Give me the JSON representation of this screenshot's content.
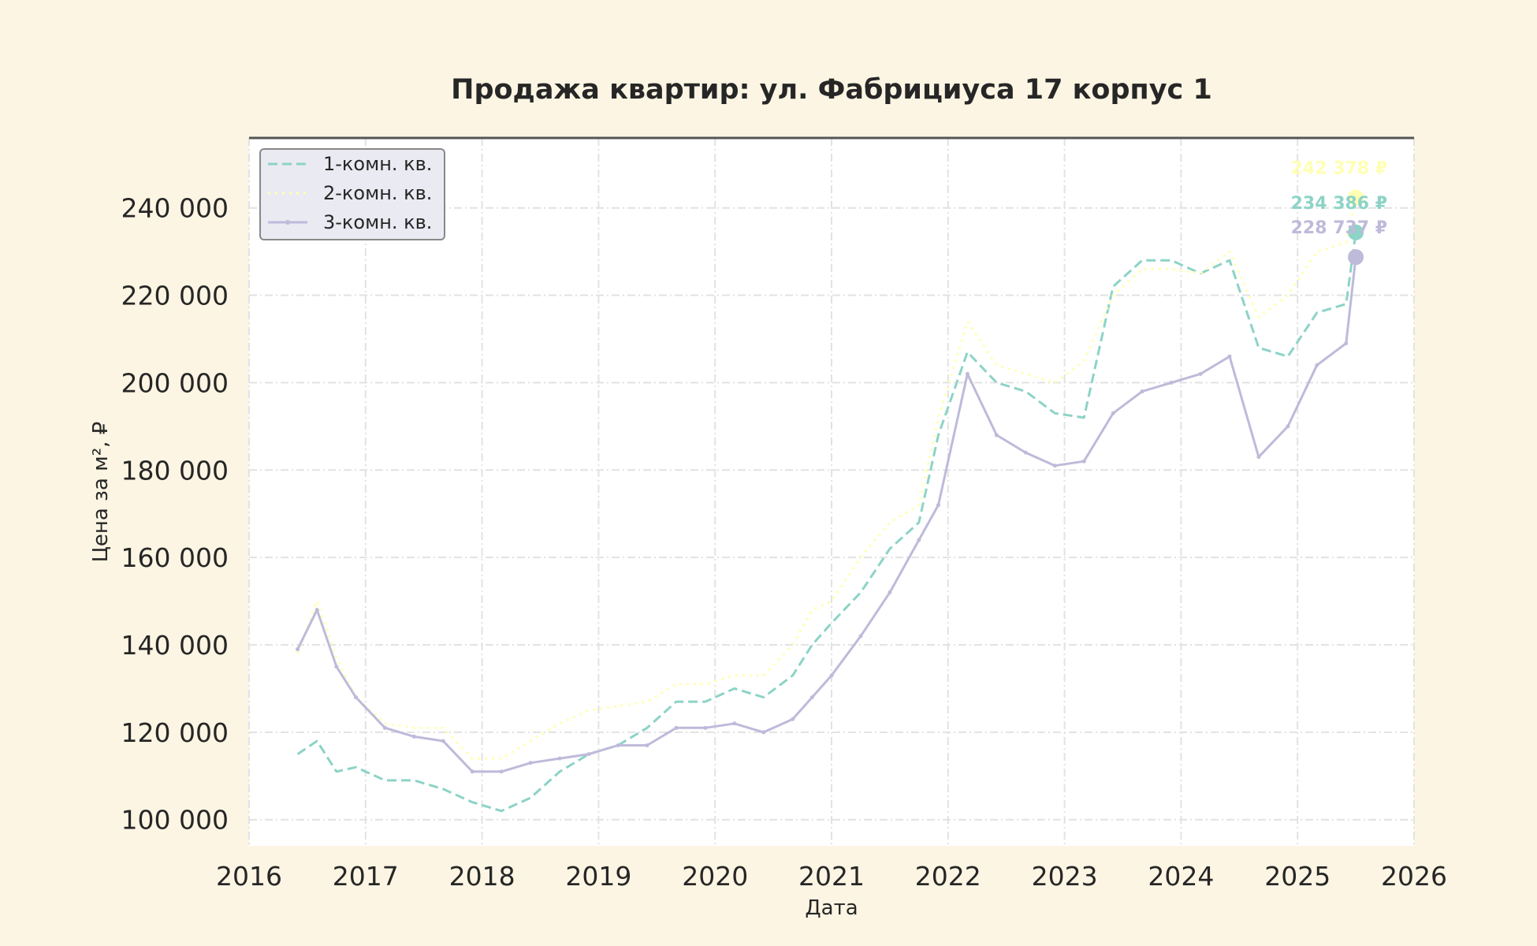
{
  "chart_data": {
    "type": "line",
    "title": "Продажа квартир: ул. Фабрициуса 17 корпус 1",
    "xlabel": "Дата",
    "ylabel": "Цена за м², ₽",
    "xlim": [
      "2016-01-01",
      "2026-01-01"
    ],
    "ylim": [
      94000,
      256000
    ],
    "x_ticks": [
      "2016",
      "2017",
      "2018",
      "2019",
      "2020",
      "2021",
      "2022",
      "2023",
      "2024",
      "2025",
      "2026"
    ],
    "y_ticks": [
      "100 000",
      "120 000",
      "140 000",
      "160 000",
      "180 000",
      "200 000",
      "220 000",
      "240 000"
    ],
    "y_tick_values": [
      100000,
      120000,
      140000,
      160000,
      180000,
      200000,
      220000,
      240000
    ],
    "grid": true,
    "legend_position": "top-left",
    "series": [
      {
        "name": "1-комн. кв.",
        "color": "#8dd3c7",
        "style": "dashed",
        "points": [
          [
            "2016-06",
            115000
          ],
          [
            "2016-08",
            118000
          ],
          [
            "2016-10",
            111000
          ],
          [
            "2016-12",
            112000
          ],
          [
            "2017-03",
            109000
          ],
          [
            "2017-06",
            109000
          ],
          [
            "2017-09",
            107000
          ],
          [
            "2017-12",
            104000
          ],
          [
            "2018-03",
            102000
          ],
          [
            "2018-06",
            105000
          ],
          [
            "2018-09",
            111000
          ],
          [
            "2018-12",
            115000
          ],
          [
            "2019-03",
            117000
          ],
          [
            "2019-06",
            121000
          ],
          [
            "2019-09",
            127000
          ],
          [
            "2019-12",
            127000
          ],
          [
            "2020-03",
            130000
          ],
          [
            "2020-06",
            128000
          ],
          [
            "2020-09",
            133000
          ],
          [
            "2020-11",
            140000
          ],
          [
            "2021-01",
            145000
          ],
          [
            "2021-04",
            152000
          ],
          [
            "2021-07",
            162000
          ],
          [
            "2021-10",
            168000
          ],
          [
            "2021-12",
            188000
          ],
          [
            "2022-03",
            207000
          ],
          [
            "2022-06",
            200000
          ],
          [
            "2022-09",
            198000
          ],
          [
            "2022-12",
            193000
          ],
          [
            "2023-03",
            192000
          ],
          [
            "2023-06",
            222000
          ],
          [
            "2023-09",
            228000
          ],
          [
            "2023-12",
            228000
          ],
          [
            "2024-03",
            225000
          ],
          [
            "2024-06",
            228000
          ],
          [
            "2024-09",
            208000
          ],
          [
            "2024-12",
            206000
          ],
          [
            "2025-03",
            216000
          ],
          [
            "2025-06",
            218000
          ],
          [
            "2025-07",
            234386
          ]
        ]
      },
      {
        "name": "2-комн. кв.",
        "color": "#ffffb3",
        "style": "dotted",
        "points": [
          [
            "2016-06",
            138000
          ],
          [
            "2016-08",
            150000
          ],
          [
            "2016-10",
            137000
          ],
          [
            "2016-12",
            128000
          ],
          [
            "2017-03",
            122000
          ],
          [
            "2017-06",
            121000
          ],
          [
            "2017-09",
            121000
          ],
          [
            "2017-12",
            114000
          ],
          [
            "2018-03",
            114000
          ],
          [
            "2018-06",
            118000
          ],
          [
            "2018-09",
            122000
          ],
          [
            "2018-12",
            125000
          ],
          [
            "2019-03",
            126000
          ],
          [
            "2019-06",
            127000
          ],
          [
            "2019-09",
            131000
          ],
          [
            "2019-12",
            131000
          ],
          [
            "2020-03",
            133000
          ],
          [
            "2020-06",
            133000
          ],
          [
            "2020-09",
            140000
          ],
          [
            "2020-11",
            148000
          ],
          [
            "2021-01",
            150000
          ],
          [
            "2021-04",
            160000
          ],
          [
            "2021-07",
            168000
          ],
          [
            "2021-10",
            172000
          ],
          [
            "2021-12",
            192000
          ],
          [
            "2022-03",
            214000
          ],
          [
            "2022-06",
            204000
          ],
          [
            "2022-09",
            202000
          ],
          [
            "2022-12",
            200000
          ],
          [
            "2023-03",
            205000
          ],
          [
            "2023-06",
            220000
          ],
          [
            "2023-09",
            226000
          ],
          [
            "2023-12",
            226000
          ],
          [
            "2024-03",
            225000
          ],
          [
            "2024-06",
            230000
          ],
          [
            "2024-09",
            215000
          ],
          [
            "2024-12",
            220000
          ],
          [
            "2025-03",
            230000
          ],
          [
            "2025-06",
            232000
          ],
          [
            "2025-07",
            242378
          ]
        ]
      },
      {
        "name": "3-комн. кв.",
        "color": "#bebada",
        "style": "solid-marker",
        "points": [
          [
            "2016-06",
            139000
          ],
          [
            "2016-08",
            148000
          ],
          [
            "2016-10",
            135000
          ],
          [
            "2016-12",
            128000
          ],
          [
            "2017-03",
            121000
          ],
          [
            "2017-06",
            119000
          ],
          [
            "2017-09",
            118000
          ],
          [
            "2017-12",
            111000
          ],
          [
            "2018-03",
            111000
          ],
          [
            "2018-06",
            113000
          ],
          [
            "2018-09",
            114000
          ],
          [
            "2018-12",
            115000
          ],
          [
            "2019-03",
            117000
          ],
          [
            "2019-06",
            117000
          ],
          [
            "2019-09",
            121000
          ],
          [
            "2019-12",
            121000
          ],
          [
            "2020-03",
            122000
          ],
          [
            "2020-06",
            120000
          ],
          [
            "2020-09",
            123000
          ],
          [
            "2020-11",
            128000
          ],
          [
            "2021-01",
            133000
          ],
          [
            "2021-04",
            142000
          ],
          [
            "2021-07",
            152000
          ],
          [
            "2021-10",
            164000
          ],
          [
            "2021-12",
            172000
          ],
          [
            "2022-03",
            202000
          ],
          [
            "2022-06",
            188000
          ],
          [
            "2022-09",
            184000
          ],
          [
            "2022-12",
            181000
          ],
          [
            "2023-03",
            182000
          ],
          [
            "2023-06",
            193000
          ],
          [
            "2023-09",
            198000
          ],
          [
            "2023-12",
            200000
          ],
          [
            "2024-03",
            202000
          ],
          [
            "2024-06",
            206000
          ],
          [
            "2024-09",
            183000
          ],
          [
            "2024-12",
            190000
          ],
          [
            "2025-03",
            204000
          ],
          [
            "2025-06",
            209000
          ],
          [
            "2025-07",
            228737
          ]
        ]
      }
    ],
    "annotations": [
      {
        "series": 1,
        "x": "2025-07",
        "y": 242378,
        "text": "242 378 ₽"
      },
      {
        "series": 0,
        "x": "2025-07",
        "y": 234386,
        "text": "234 386 ₽"
      },
      {
        "series": 2,
        "x": "2025-07",
        "y": 228737,
        "text": "228 737 ₽"
      }
    ]
  }
}
